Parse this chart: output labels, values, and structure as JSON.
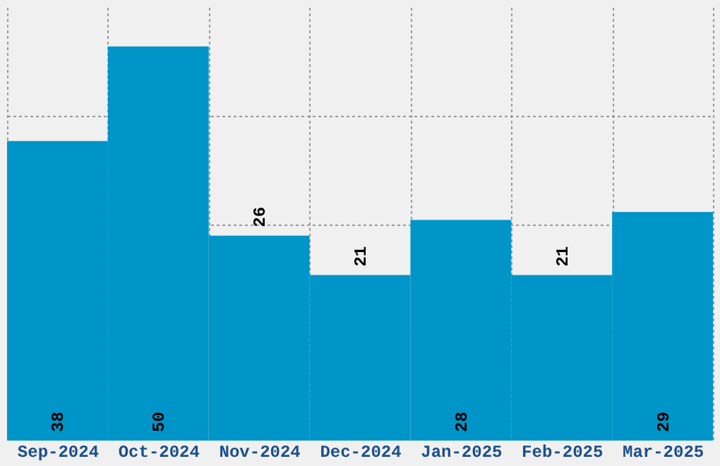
{
  "chart_data": {
    "type": "bar",
    "categories": [
      "Sep-2024",
      "Oct-2024",
      "Nov-2024",
      "Dec-2024",
      "Jan-2025",
      "Feb-2025",
      "Mar-2025"
    ],
    "values": [
      38,
      50,
      26,
      21,
      28,
      21,
      29
    ],
    "color": "#0095c8",
    "ylim": [
      0,
      55
    ],
    "yticks": [
      {
        "value": 13.75,
        "label": null
      },
      {
        "value": 27.5,
        "label": null
      },
      {
        "value": 41.25,
        "label": null
      }
    ],
    "grid": true,
    "tick_labels": "x",
    "data_labels": true
  }
}
